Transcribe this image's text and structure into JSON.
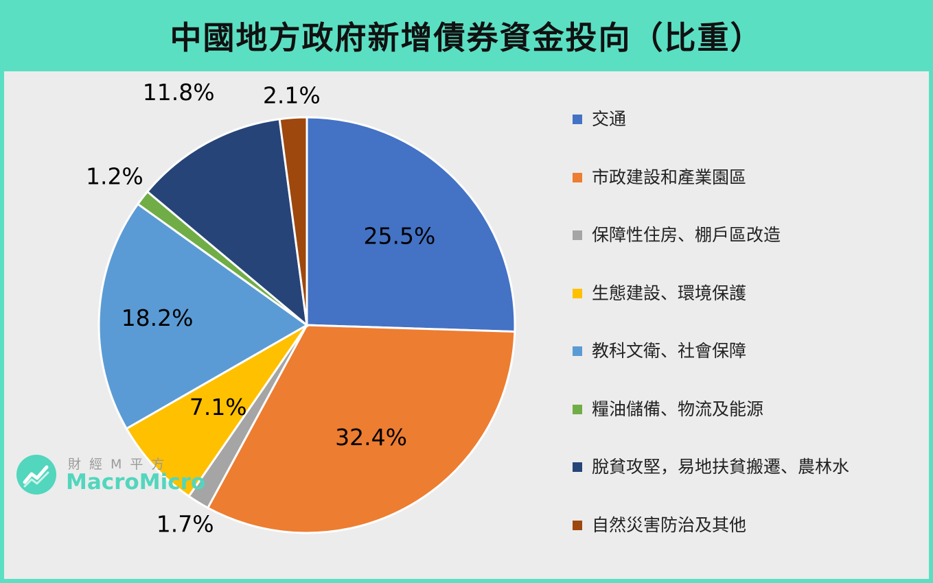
{
  "title": "中國地方政府新增債券資金投向（比重）",
  "watermark": {
    "cn": "財經M平方",
    "en": "MacroMicro"
  },
  "chart_data": {
    "type": "pie",
    "legend_position": "right",
    "slices": [
      {
        "name": "交通",
        "value": 25.5,
        "label": "25.5%",
        "color": "#4472c4"
      },
      {
        "name": "市政建設和產業園區",
        "value": 32.4,
        "label": "32.4%",
        "color": "#ed7d31"
      },
      {
        "name": "保障性住房、棚戶區改造",
        "value": 1.7,
        "label": "1.7%",
        "color": "#a5a5a5"
      },
      {
        "name": "生態建設、環境保護",
        "value": 7.1,
        "label": "7.1%",
        "color": "#ffc000"
      },
      {
        "name": "教科文衛、社會保障",
        "value": 18.2,
        "label": "18.2%",
        "color": "#5b9bd5"
      },
      {
        "name": "糧油儲備、物流及能源",
        "value": 1.2,
        "label": "1.2%",
        "color": "#70ad47"
      },
      {
        "name": "脫貧攻堅，易地扶貧搬遷、農林水",
        "value": 11.8,
        "label": "11.8%",
        "color": "#264478"
      },
      {
        "name": "自然災害防治及其他",
        "value": 2.1,
        "label": "2.1%",
        "color": "#9e480e"
      }
    ]
  }
}
